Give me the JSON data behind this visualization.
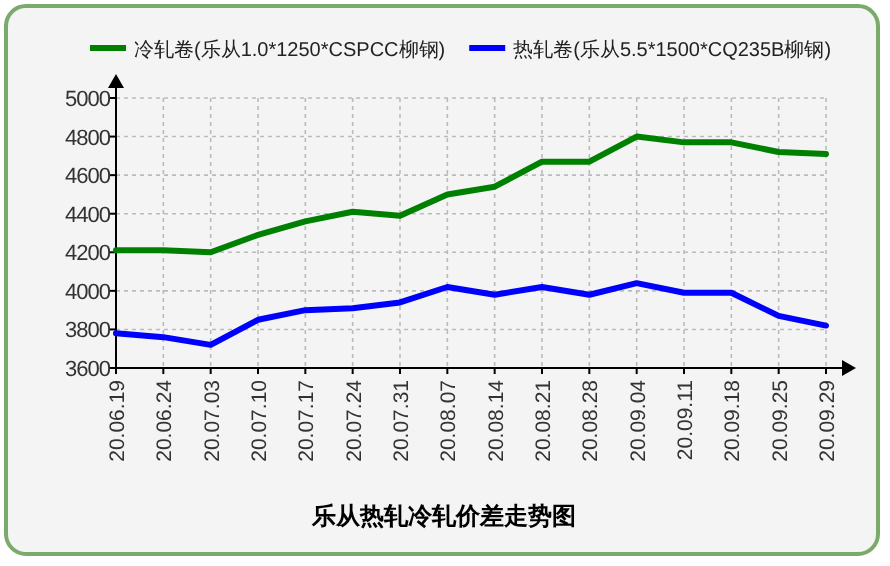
{
  "chart_data": {
    "type": "line",
    "title": "乐从热轧冷轧价差走势图",
    "categories": [
      "20.06.19",
      "20.06.24",
      "20.07.03",
      "20.07.10",
      "20.07.17",
      "20.07.24",
      "20.07.31",
      "20.08.07",
      "20.08.14",
      "20.08.21",
      "20.08.28",
      "20.09.04",
      "20.09.11",
      "20.09.18",
      "20.09.25",
      "20.09.29"
    ],
    "series": [
      {
        "name": "冷轧卷(乐从1.0*1250*CSPCC柳钢)",
        "color": "#008000",
        "values": [
          4210,
          4210,
          4200,
          4290,
          4360,
          4410,
          4390,
          4500,
          4540,
          4670,
          4670,
          4800,
          4770,
          4770,
          4720,
          4710
        ]
      },
      {
        "name": "热轧卷(乐从5.5*1500*CQ235B柳钢)",
        "color": "#0000ff",
        "values": [
          3780,
          3760,
          3720,
          3850,
          3900,
          3910,
          3940,
          4020,
          3980,
          4020,
          3980,
          4040,
          3990,
          3990,
          3870,
          3820
        ]
      }
    ],
    "ylim": [
      3600,
      5000
    ],
    "yticks": [
      3600,
      3800,
      4000,
      4200,
      4400,
      4600,
      4800,
      5000
    ],
    "grid": true,
    "legend": "top"
  }
}
